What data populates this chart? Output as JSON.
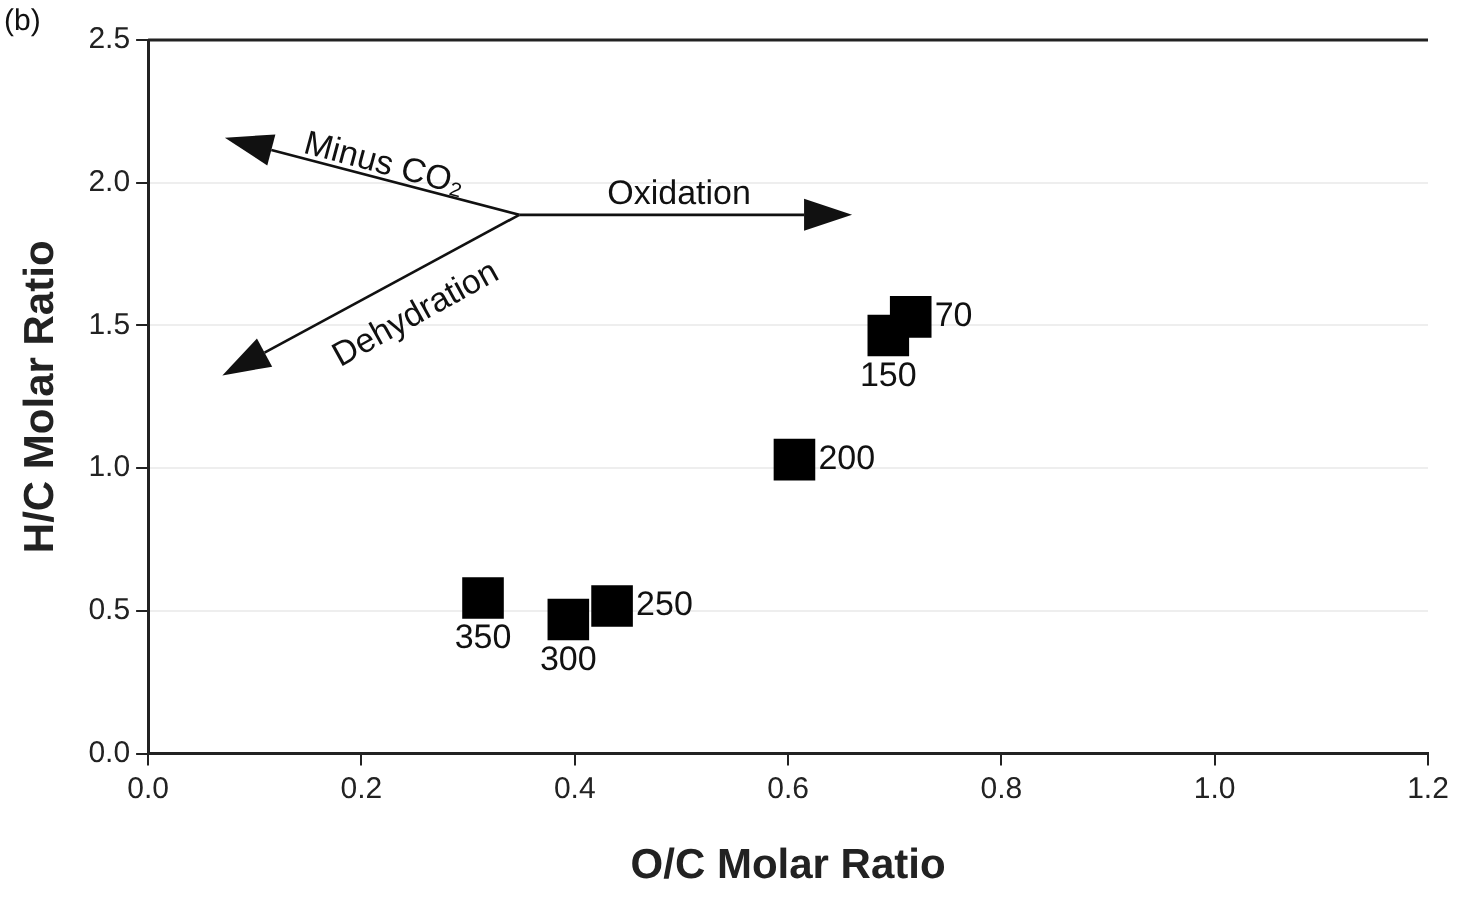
{
  "chart_data": {
    "type": "scatter",
    "xlabel": "O/C Molar Ratio",
    "ylabel": "H/C Molar Ratio",
    "series": [
      {
        "color": "#000000",
        "x": [
          0.715,
          0.694,
          0.606,
          0.435,
          0.394,
          0.314
        ],
        "values": [
          1.53,
          1.465,
          1.03,
          0.517,
          0.47,
          0.545
        ]
      }
    ],
    "marker": "square",
    "grid": "y",
    "legend": false,
    "xlim": [
      0,
      1.2
    ],
    "xticks": [
      {
        "value": 0,
        "label": "0.0"
      },
      {
        "value": 0.2,
        "label": "0.2"
      },
      {
        "value": 0.4,
        "label": "0.4"
      },
      {
        "value": 0.6,
        "label": "0.6"
      },
      {
        "value": 0.8,
        "label": "0.8"
      },
      {
        "value": 1,
        "label": "1.0"
      },
      {
        "value": 1.2,
        "label": "1.2"
      }
    ],
    "ylim": [
      0,
      2.5
    ],
    "yticks": [
      {
        "value": 0,
        "label": "0.0"
      },
      {
        "value": 0.5,
        "label": "0.5"
      },
      {
        "value": 1,
        "label": "1.0"
      },
      {
        "value": 1.5,
        "label": "1.5"
      },
      {
        "value": 2,
        "label": "2.0"
      },
      {
        "value": 2.5,
        "label": "2.5"
      }
    ],
    "annotations": [
      "(b)",
      "Minus CO₂",
      "Oxidation",
      "Dehydration",
      {
        "text": "70",
        "x": 0.715,
        "y": 1.53
      },
      {
        "text": "150",
        "x": 0.694,
        "y": 1.465
      },
      {
        "text": "200",
        "x": 0.606,
        "y": 1.03
      },
      {
        "text": "250",
        "x": 0.435,
        "y": 0.517
      },
      {
        "text": "300",
        "x": 0.394,
        "y": 0.47
      },
      {
        "text": "350",
        "x": 0.314,
        "y": 0.545
      }
    ]
  }
}
